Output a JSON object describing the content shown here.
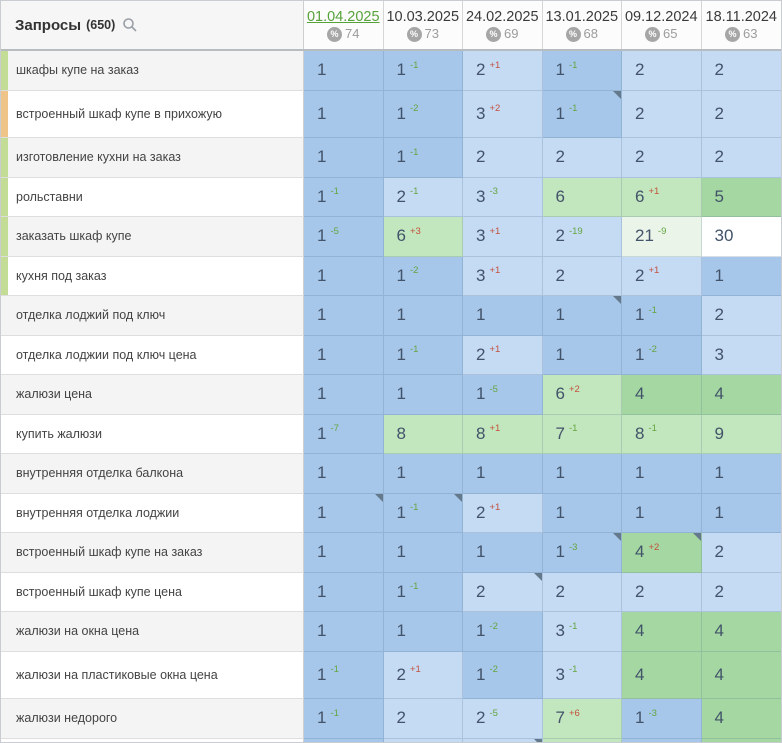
{
  "header": {
    "title": "Запросы",
    "count": "(650)",
    "search_icon": "magnifier",
    "columns": [
      {
        "date": "01.04.2025",
        "visibility": "74",
        "selected": true
      },
      {
        "date": "10.03.2025",
        "visibility": "73",
        "selected": false
      },
      {
        "date": "24.02.2025",
        "visibility": "69",
        "selected": false
      },
      {
        "date": "13.01.2025",
        "visibility": "68",
        "selected": false
      },
      {
        "date": "09.12.2024",
        "visibility": "65",
        "selected": false
      },
      {
        "date": "18.11.2024",
        "visibility": "63",
        "selected": false
      }
    ]
  },
  "colors": {
    "selected_date": "#56a23a",
    "delta_improved": "#63a53f",
    "delta_dropped": "#c4513d",
    "pos_top1": "#a6c7ea",
    "pos_top3": "#c5daf3",
    "pos_top5": "#a4d7a1",
    "pos_top10": "#c2e6bd",
    "pos_top30": "#eaf4e9",
    "group_bar_green": "#c3dc96",
    "group_bar_orange": "#eec488",
    "note_marker": "#64798c"
  },
  "rows": [
    {
      "label": "шкафы купе на заказ",
      "bar": "green",
      "tall": false,
      "cells": [
        {
          "v": 1
        },
        {
          "v": 1,
          "d": "-1"
        },
        {
          "v": 2,
          "d": "+1"
        },
        {
          "v": 1,
          "d": "-1"
        },
        {
          "v": 2
        },
        {
          "v": 2
        }
      ]
    },
    {
      "label": "встроенный шкаф купе в прихожую",
      "bar": "orange",
      "tall": true,
      "cells": [
        {
          "v": 1
        },
        {
          "v": 1,
          "d": "-2"
        },
        {
          "v": 3,
          "d": "+2"
        },
        {
          "v": 1,
          "d": "-1",
          "note": true
        },
        {
          "v": 2
        },
        {
          "v": 2
        }
      ]
    },
    {
      "label": "изготовление кухни на заказ",
      "bar": "green",
      "tall": false,
      "cells": [
        {
          "v": 1
        },
        {
          "v": 1,
          "d": "-1"
        },
        {
          "v": 2
        },
        {
          "v": 2
        },
        {
          "v": 2
        },
        {
          "v": 2
        }
      ]
    },
    {
      "label": "рольставни",
      "bar": "green",
      "tall": false,
      "cells": [
        {
          "v": 1,
          "d": "-1"
        },
        {
          "v": 2,
          "d": "-1"
        },
        {
          "v": 3,
          "d": "-3"
        },
        {
          "v": 6
        },
        {
          "v": 6,
          "d": "+1"
        },
        {
          "v": 5
        }
      ]
    },
    {
      "label": "заказать шкаф купе",
      "bar": "green",
      "tall": false,
      "cells": [
        {
          "v": 1,
          "d": "-5"
        },
        {
          "v": 6,
          "d": "+3"
        },
        {
          "v": 3,
          "d": "+1"
        },
        {
          "v": 2,
          "d": "-19"
        },
        {
          "v": 21,
          "d": "-9"
        },
        {
          "v": 30
        }
      ]
    },
    {
      "label": "кухня под заказ",
      "bar": "green",
      "tall": false,
      "cells": [
        {
          "v": 1
        },
        {
          "v": 1,
          "d": "-2"
        },
        {
          "v": 3,
          "d": "+1"
        },
        {
          "v": 2
        },
        {
          "v": 2,
          "d": "+1"
        },
        {
          "v": 1
        }
      ]
    },
    {
      "label": "отделка лоджий под ключ",
      "bar": null,
      "tall": false,
      "cells": [
        {
          "v": 1
        },
        {
          "v": 1
        },
        {
          "v": 1
        },
        {
          "v": 1,
          "note": true
        },
        {
          "v": 1,
          "d": "-1"
        },
        {
          "v": 2
        }
      ]
    },
    {
      "label": "отделка лоджии под ключ цена",
      "bar": null,
      "tall": false,
      "cells": [
        {
          "v": 1
        },
        {
          "v": 1,
          "d": "-1"
        },
        {
          "v": 2,
          "d": "+1"
        },
        {
          "v": 1
        },
        {
          "v": 1,
          "d": "-2"
        },
        {
          "v": 3
        }
      ]
    },
    {
      "label": "жалюзи цена",
      "bar": null,
      "tall": false,
      "cells": [
        {
          "v": 1
        },
        {
          "v": 1
        },
        {
          "v": 1,
          "d": "-5"
        },
        {
          "v": 6,
          "d": "+2"
        },
        {
          "v": 4
        },
        {
          "v": 4
        }
      ]
    },
    {
      "label": "купить жалюзи",
      "bar": null,
      "tall": false,
      "cells": [
        {
          "v": 1,
          "d": "-7"
        },
        {
          "v": 8
        },
        {
          "v": 8,
          "d": "+1"
        },
        {
          "v": 7,
          "d": "-1"
        },
        {
          "v": 8,
          "d": "-1"
        },
        {
          "v": 9
        }
      ]
    },
    {
      "label": "внутренняя отделка балкона",
      "bar": null,
      "tall": false,
      "cells": [
        {
          "v": 1
        },
        {
          "v": 1
        },
        {
          "v": 1
        },
        {
          "v": 1
        },
        {
          "v": 1
        },
        {
          "v": 1
        }
      ]
    },
    {
      "label": "внутренняя отделка лоджии",
      "bar": null,
      "tall": false,
      "cells": [
        {
          "v": 1,
          "note": true
        },
        {
          "v": 1,
          "d": "-1",
          "note": true
        },
        {
          "v": 2,
          "d": "+1"
        },
        {
          "v": 1
        },
        {
          "v": 1
        },
        {
          "v": 1
        }
      ]
    },
    {
      "label": "встроенный шкаф купе на заказ",
      "bar": null,
      "tall": false,
      "cells": [
        {
          "v": 1
        },
        {
          "v": 1
        },
        {
          "v": 1
        },
        {
          "v": 1,
          "d": "-3",
          "note": true
        },
        {
          "v": 4,
          "d": "+2",
          "note": true
        },
        {
          "v": 2
        }
      ]
    },
    {
      "label": "встроенный шкаф купе цена",
      "bar": null,
      "tall": false,
      "cells": [
        {
          "v": 1
        },
        {
          "v": 1,
          "d": "-1"
        },
        {
          "v": 2,
          "note": true
        },
        {
          "v": 2
        },
        {
          "v": 2
        },
        {
          "v": 2
        }
      ]
    },
    {
      "label": "жалюзи на окна цена",
      "bar": null,
      "tall": false,
      "cells": [
        {
          "v": 1
        },
        {
          "v": 1
        },
        {
          "v": 1,
          "d": "-2"
        },
        {
          "v": 3,
          "d": "-1"
        },
        {
          "v": 4
        },
        {
          "v": 4
        }
      ]
    },
    {
      "label": "жалюзи на пластиковые окна цена",
      "bar": null,
      "tall": true,
      "cells": [
        {
          "v": 1,
          "d": "-1"
        },
        {
          "v": 2,
          "d": "+1"
        },
        {
          "v": 1,
          "d": "-2"
        },
        {
          "v": 3,
          "d": "-1"
        },
        {
          "v": 4
        },
        {
          "v": 4
        }
      ]
    },
    {
      "label": "жалюзи недорого",
      "bar": null,
      "tall": false,
      "cells": [
        {
          "v": 1,
          "d": "-1"
        },
        {
          "v": 2
        },
        {
          "v": 2,
          "d": "-5"
        },
        {
          "v": 7,
          "d": "+6"
        },
        {
          "v": 1,
          "d": "-3"
        },
        {
          "v": 4
        }
      ]
    }
  ],
  "partial_row": {
    "tiers": [
      "t1",
      "t3",
      "t3",
      "t10",
      "t1",
      "t5"
    ],
    "note_col": 2
  }
}
